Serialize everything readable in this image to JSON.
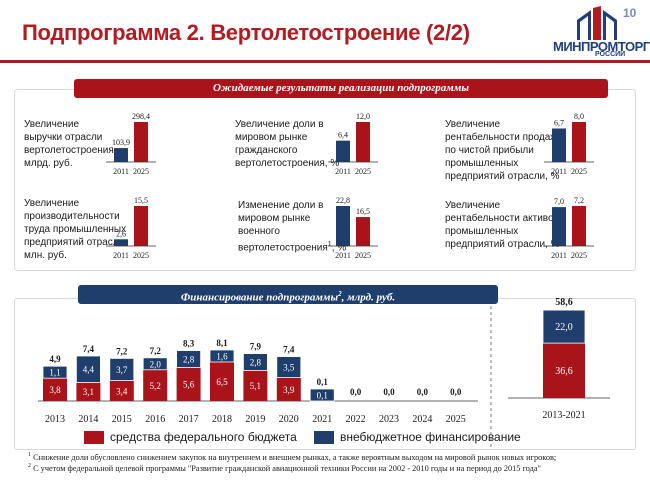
{
  "header": {
    "title": "Подпрограмма 2. Вертолетостроение (2/2)",
    "page_number": "10",
    "logo_text": "МИНПРОМТОРГ",
    "logo_sub": "РОССИИ"
  },
  "section1": {
    "title": "Ожидаемые результаты реализации подпрограммы"
  },
  "indicators": [
    {
      "label_lines": [
        "Увеличение",
        "выручки отрасли",
        "вертолетостроения,",
        "млрд. руб."
      ],
      "values": [
        "103,9",
        "298,4"
      ],
      "value_nums": [
        103.9,
        298.4
      ],
      "years": [
        "2011",
        "2025"
      ]
    },
    {
      "label_lines": [
        "Увеличение доли в",
        "мировом рынке",
        "гражданского",
        "вертолетостроения, %"
      ],
      "values": [
        "6,4",
        "12,0"
      ],
      "value_nums": [
        6.4,
        12.0
      ],
      "years": [
        "2011",
        "2025"
      ]
    },
    {
      "label_lines": [
        "Увеличение",
        "рентабельности продаж",
        "по чистой прибыли",
        "промышленных",
        "предприятий отрасли, %"
      ],
      "values": [
        "6,7",
        "8,0"
      ],
      "value_nums": [
        6.7,
        8.0
      ],
      "years": [
        "2011",
        "2025"
      ]
    },
    {
      "label_lines": [
        "Увеличение",
        "производительности",
        "труда промышленных",
        "предприятий отрасли,",
        "млн. руб."
      ],
      "values": [
        "2,6",
        "15,5"
      ],
      "value_nums": [
        2.6,
        15.5
      ],
      "years": [
        "2011",
        "2025"
      ]
    },
    {
      "label_lines": [
        "Изменение доли в",
        "мировом рынке",
        "военного",
        "вертолетостроения",
        "1",
        ", %"
      ],
      "values": [
        "22,8",
        "16,5"
      ],
      "value_nums": [
        22.8,
        16.5
      ],
      "years": [
        "2011",
        "2025"
      ]
    },
    {
      "label_lines": [
        "Увеличение",
        "рентабельности активов",
        "промышленных",
        "предприятий отрасли, %"
      ],
      "values": [
        "7,0",
        "7,2"
      ],
      "value_nums": [
        7.0,
        7.2
      ],
      "years": [
        "2011",
        "2025"
      ]
    }
  ],
  "section2": {
    "title": "Финансирование подпрограммы",
    "title_sup": "2",
    "title_suffix": ", млрд. руб."
  },
  "chart_data": {
    "type": "bar",
    "stacked": true,
    "categories": [
      "2013",
      "2014",
      "2015",
      "2016",
      "2017",
      "2018",
      "2019",
      "2020",
      "2021",
      "2022",
      "2023",
      "2024",
      "2025"
    ],
    "series": [
      {
        "name": "средства федерального бюджета",
        "values": [
          3.8,
          3.1,
          3.4,
          5.2,
          5.6,
          6.5,
          5.1,
          3.9,
          0.0,
          0.0,
          0.0,
          0.0,
          0.0
        ],
        "labels": [
          "3,8",
          "3,1",
          "3,4",
          "5,2",
          "5,6",
          "6,5",
          "5,1",
          "3,9",
          "",
          "",
          "",
          "",
          ""
        ]
      },
      {
        "name": "внебюджетное финансирование",
        "values": [
          1.1,
          4.4,
          3.7,
          2.0,
          2.8,
          1.6,
          2.8,
          3.5,
          0.1,
          0.0,
          0.0,
          0.0,
          0.0
        ],
        "labels": [
          "1,1",
          "4,4",
          "3,7",
          "2,0",
          "2,8",
          "1,6",
          "2,8",
          "3,5",
          "0,1",
          "",
          "",
          "",
          ""
        ]
      }
    ],
    "totals": [
      "4,9",
      "7,4",
      "7,2",
      "7,2",
      "8,3",
      "8,1",
      "7,9",
      "7,4",
      "0,1",
      "0,0",
      "0,0",
      "0,0",
      "0,0"
    ],
    "total_values": [
      4.9,
      7.4,
      7.2,
      7.2,
      8.3,
      8.1,
      7.9,
      7.4,
      0.1,
      0.0,
      0.0,
      0.0,
      0.0
    ],
    "summary": {
      "category": "2013-2021",
      "federal": 36.6,
      "federal_label": "36,6",
      "extra": 22.0,
      "extra_label": "22,0",
      "total": 58.6,
      "total_label": "58,6"
    },
    "ylim": [
      0,
      9
    ]
  },
  "legend": {
    "federal": "средства федерального бюджета",
    "extra": "внебюджетное финансирование"
  },
  "footnotes": [
    {
      "num": "1",
      "text": " Снижение доли обусловлено снижением закупок на внутреннем и внешнем рынках, а также вероятным выходом на мировой рынок новых игроков;"
    },
    {
      "num": "2",
      "text": " С учетом федеральной целевой программы \"Развитие гражданской авиационной техники России на 2002 - 2010 годы и на период до 2015 года\""
    }
  ],
  "colors": {
    "red": "#a8141a",
    "navy": "#1f3e6c",
    "title_red": "#b01c22"
  }
}
